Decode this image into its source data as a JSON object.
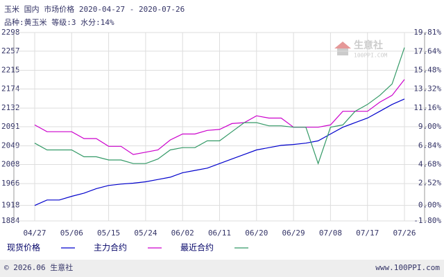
{
  "chart_data": {
    "type": "line",
    "title": "玉米 国内 市场价格 2020-04-27 - 2020-07-26",
    "subtitle": "品种:黄玉米 等级:3 水分:14%",
    "watermark": "生意社",
    "watermark_sub": "100PPI.COM",
    "footer_left": "© 2026.06 生意社",
    "footer_right": "www.100PPI.com",
    "categories": [
      "04/27",
      null,
      null,
      "05/06",
      null,
      null,
      "05/15",
      null,
      null,
      "05/24",
      null,
      null,
      "06/02",
      null,
      null,
      "06/11",
      null,
      null,
      "06/20",
      null,
      null,
      "06/29",
      null,
      null,
      "07/08",
      null,
      null,
      "07/17",
      null,
      null,
      "07/26"
    ],
    "series": [
      {
        "name": "现货价格",
        "color": "#0000cc",
        "values": [
          1918,
          1930,
          1930,
          1938,
          1945,
          1955,
          1962,
          1965,
          1967,
          1970,
          1975,
          1980,
          1990,
          1995,
          2000,
          2010,
          2020,
          2030,
          2040,
          2045,
          2050,
          2052,
          2055,
          2060,
          2075,
          2090,
          2100,
          2110,
          2125,
          2140,
          2152
        ]
      },
      {
        "name": "主力合约",
        "color": "#cc00cc",
        "values": [
          2095,
          2080,
          2080,
          2080,
          2065,
          2065,
          2048,
          2048,
          2030,
          2035,
          2040,
          2062,
          2075,
          2075,
          2083,
          2085,
          2098,
          2100,
          2115,
          2110,
          2110,
          2090,
          2090,
          2090,
          2095,
          2125,
          2125,
          2125,
          2145,
          2160,
          2195
        ]
      },
      {
        "name": "最近合约",
        "color": "#339966",
        "values": [
          2055,
          2040,
          2040,
          2040,
          2025,
          2025,
          2018,
          2018,
          2010,
          2010,
          2020,
          2040,
          2045,
          2045,
          2060,
          2060,
          2080,
          2100,
          2100,
          2093,
          2093,
          2090,
          2090,
          2010,
          2090,
          2095,
          2125,
          2140,
          2160,
          2185,
          2265
        ]
      }
    ],
    "ylim": [
      1884,
      2298
    ],
    "yticks": [
      1884,
      1918,
      1966,
      2008,
      2049,
      2091,
      2132,
      2174,
      2215,
      2257,
      2298
    ],
    "y2lim": [
      -1.8,
      19.81
    ],
    "y2ticks": [
      {
        "value": -1.8,
        "label": "-1.80%"
      },
      {
        "value": 0.0,
        "label": "0.00%"
      },
      {
        "value": 2.52,
        "label": "2.52%"
      },
      {
        "value": 4.68,
        "label": "4.68%"
      },
      {
        "value": 6.84,
        "label": "6.84%"
      },
      {
        "value": 9.0,
        "label": "9.00%"
      },
      {
        "value": 11.16,
        "label": "11.16%"
      },
      {
        "value": 13.32,
        "label": "13.32%"
      },
      {
        "value": 15.48,
        "label": "15.48%"
      },
      {
        "value": 17.64,
        "label": "17.64%"
      },
      {
        "value": 19.81,
        "label": "19.81%"
      }
    ],
    "grid": true
  }
}
